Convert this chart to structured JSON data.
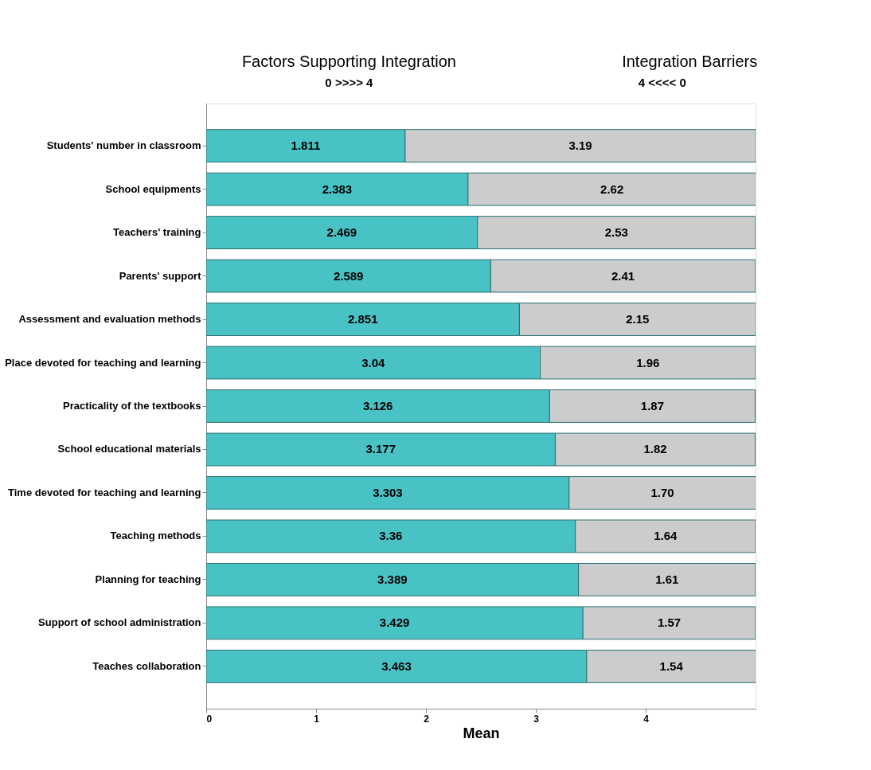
{
  "chart_data": {
    "type": "bar",
    "orientation": "horizontal",
    "stacked": true,
    "categories": [
      "Students' number in classroom",
      "School equipments",
      "Teachers' training",
      "Parents' support",
      "Assessment and evaluation methods",
      "Place devoted for teaching and learning",
      "Practicality of  the textbooks",
      "School educational materials",
      "Time devoted for teaching and learning",
      "Teaching methods",
      "Planning for teaching",
      "Support of school administration",
      "Teaches collaboration"
    ],
    "series": [
      {
        "color": "#48c2c5",
        "values": [
          1.811,
          2.383,
          2.469,
          2.589,
          2.851,
          3.04,
          3.126,
          3.177,
          3.303,
          3.36,
          3.389,
          3.429,
          3.463
        ]
      },
      {
        "color": "#cccccc",
        "values": [
          3.19,
          2.62,
          2.53,
          2.41,
          2.15,
          1.96,
          1.87,
          1.82,
          1.7,
          1.64,
          1.61,
          1.57,
          1.54
        ]
      }
    ],
    "value_labels": [
      [
        "1.811",
        "2.383",
        "2.469",
        "2.589",
        "2.851",
        "3.04",
        "3.126",
        "3.177",
        "3.303",
        "3.36",
        "3.389",
        "3.429",
        "3.463"
      ],
      [
        "3.19",
        "2.62",
        "2.53",
        "2.41",
        "2.15",
        "1.96",
        "1.87",
        "1.82",
        "1.70",
        "1.64",
        "1.61",
        "1.57",
        "1.54"
      ]
    ],
    "xlim": [
      0,
      5
    ],
    "xticks": [
      0,
      1,
      2,
      3,
      4
    ],
    "xlabel": "Mean",
    "grid": false,
    "legend": false,
    "annotations": [
      "Factors Supporting Integration",
      "Integration Barriers",
      "0 >>>> 4",
      "4 <<<< 0"
    ]
  }
}
